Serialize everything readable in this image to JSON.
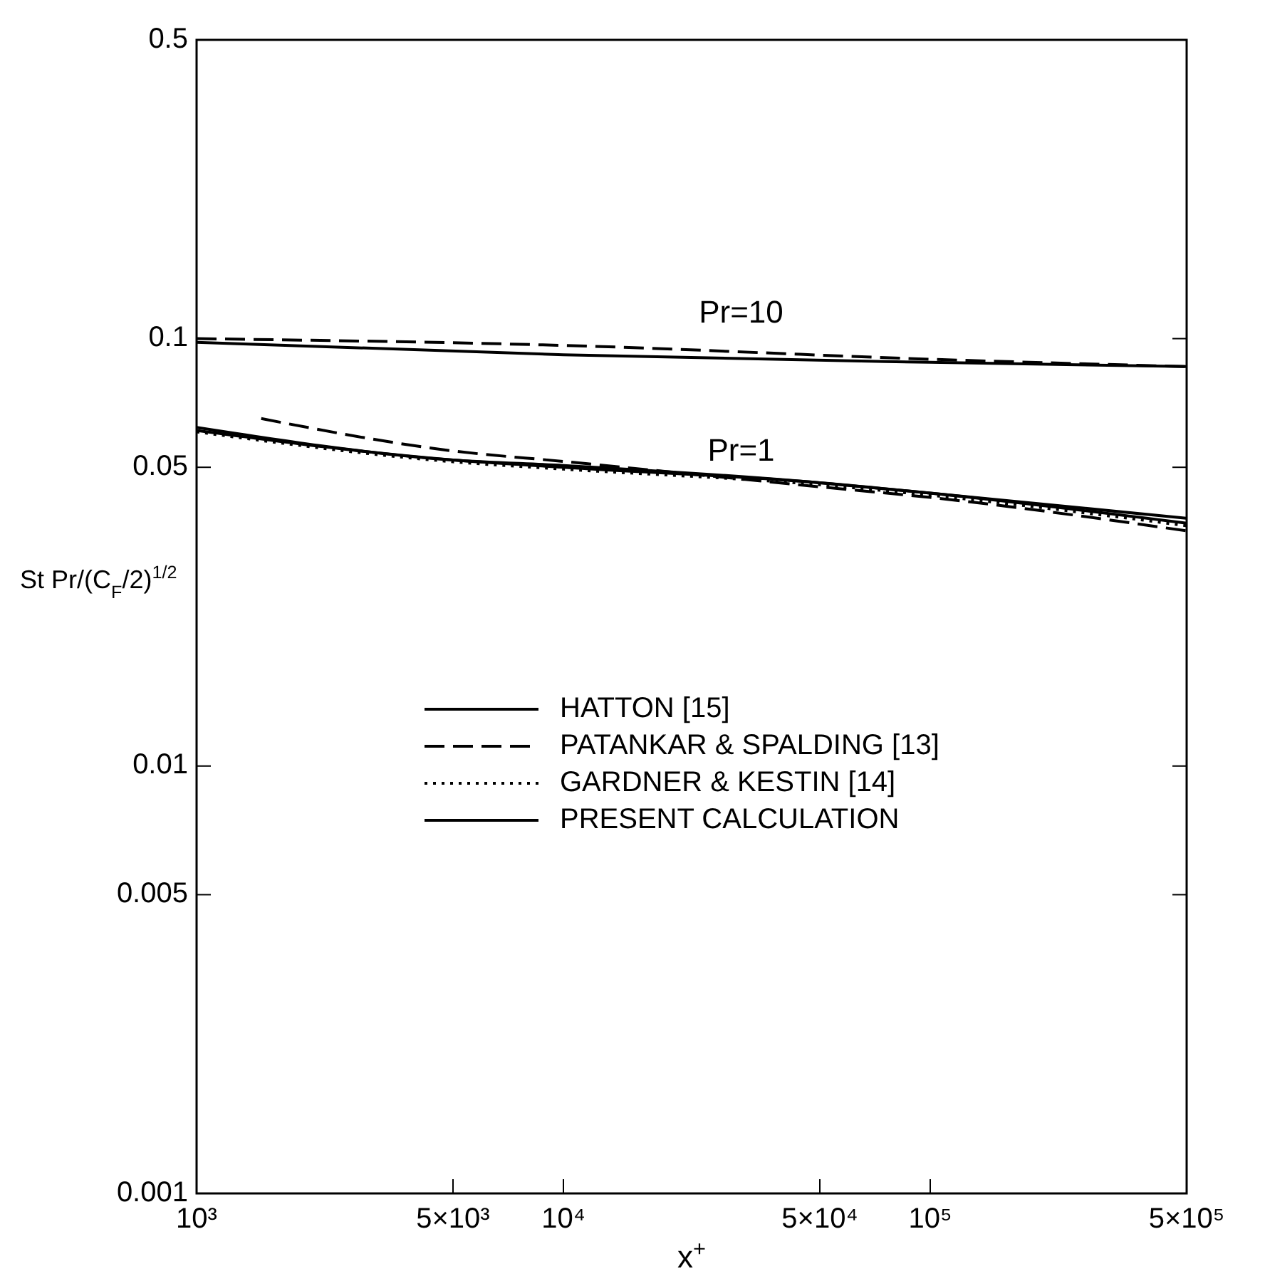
{
  "chart_data": {
    "type": "line",
    "log": "xy",
    "xlabel": "x$^{+}$",
    "ylabel": "St Pr/(C$_{F}$/2)$^{1/2}$",
    "xlim": [
      1000,
      500000
    ],
    "ylim": [
      0.001,
      0.5
    ],
    "xticks": [
      {
        "value": 1000,
        "label": "10³"
      },
      {
        "value": 5000,
        "label": "5×10³"
      },
      {
        "value": 10000,
        "label": "10⁴"
      },
      {
        "value": 50000,
        "label": "5×10⁴"
      },
      {
        "value": 100000,
        "label": "10⁵"
      },
      {
        "value": 500000,
        "label": "5×10⁵"
      }
    ],
    "yticks": [
      0.001,
      0.005,
      0.01,
      0.05,
      0.1,
      0.5
    ],
    "grid": false,
    "legend": "center",
    "series": [
      {
        "name": "HATTON [15]",
        "color": "#000000",
        "line_style": "solid",
        "x": [
          1000,
          5000,
          10000,
          50000,
          100000,
          500000
        ],
        "values": [
          0.062,
          0.052,
          0.0505,
          0.046,
          0.0435,
          0.038
        ]
      },
      {
        "name": "PATANKAR & SPALDING [13]",
        "color": "#000000",
        "line_style": "dashed",
        "x": [
          1500,
          5000,
          10000,
          50000,
          100000,
          500000
        ],
        "values": [
          0.065,
          0.0546,
          0.0516,
          0.045,
          0.0425,
          0.0355
        ]
      },
      {
        "name": "GARDNER & KESTIN [14]",
        "color": "#000000",
        "line_style": "dotted",
        "x": [
          1000,
          5000,
          10000,
          50000,
          100000,
          500000
        ],
        "values": [
          0.0605,
          0.0515,
          0.0495,
          0.0455,
          0.043,
          0.0365
        ]
      },
      {
        "name": "PRESENT CALCULATION",
        "color": "#000000",
        "line_style": "solid",
        "x": [
          1000,
          5000,
          10000,
          50000,
          100000,
          500000
        ],
        "values": [
          0.061,
          0.052,
          0.05,
          0.046,
          0.0435,
          0.037
        ]
      },
      {
        "color": "#000000",
        "line_style": "dashed",
        "x": [
          1000,
          10000,
          100000,
          500000
        ],
        "values": [
          0.1,
          0.0964,
          0.0895,
          0.086
        ]
      },
      {
        "color": "#000000",
        "line_style": "solid",
        "x": [
          1000,
          10000,
          100000,
          500000
        ],
        "values": [
          0.098,
          0.0917,
          0.088,
          0.086
        ]
      }
    ],
    "annotations": [
      "Pr=10",
      "Pr=1"
    ]
  }
}
